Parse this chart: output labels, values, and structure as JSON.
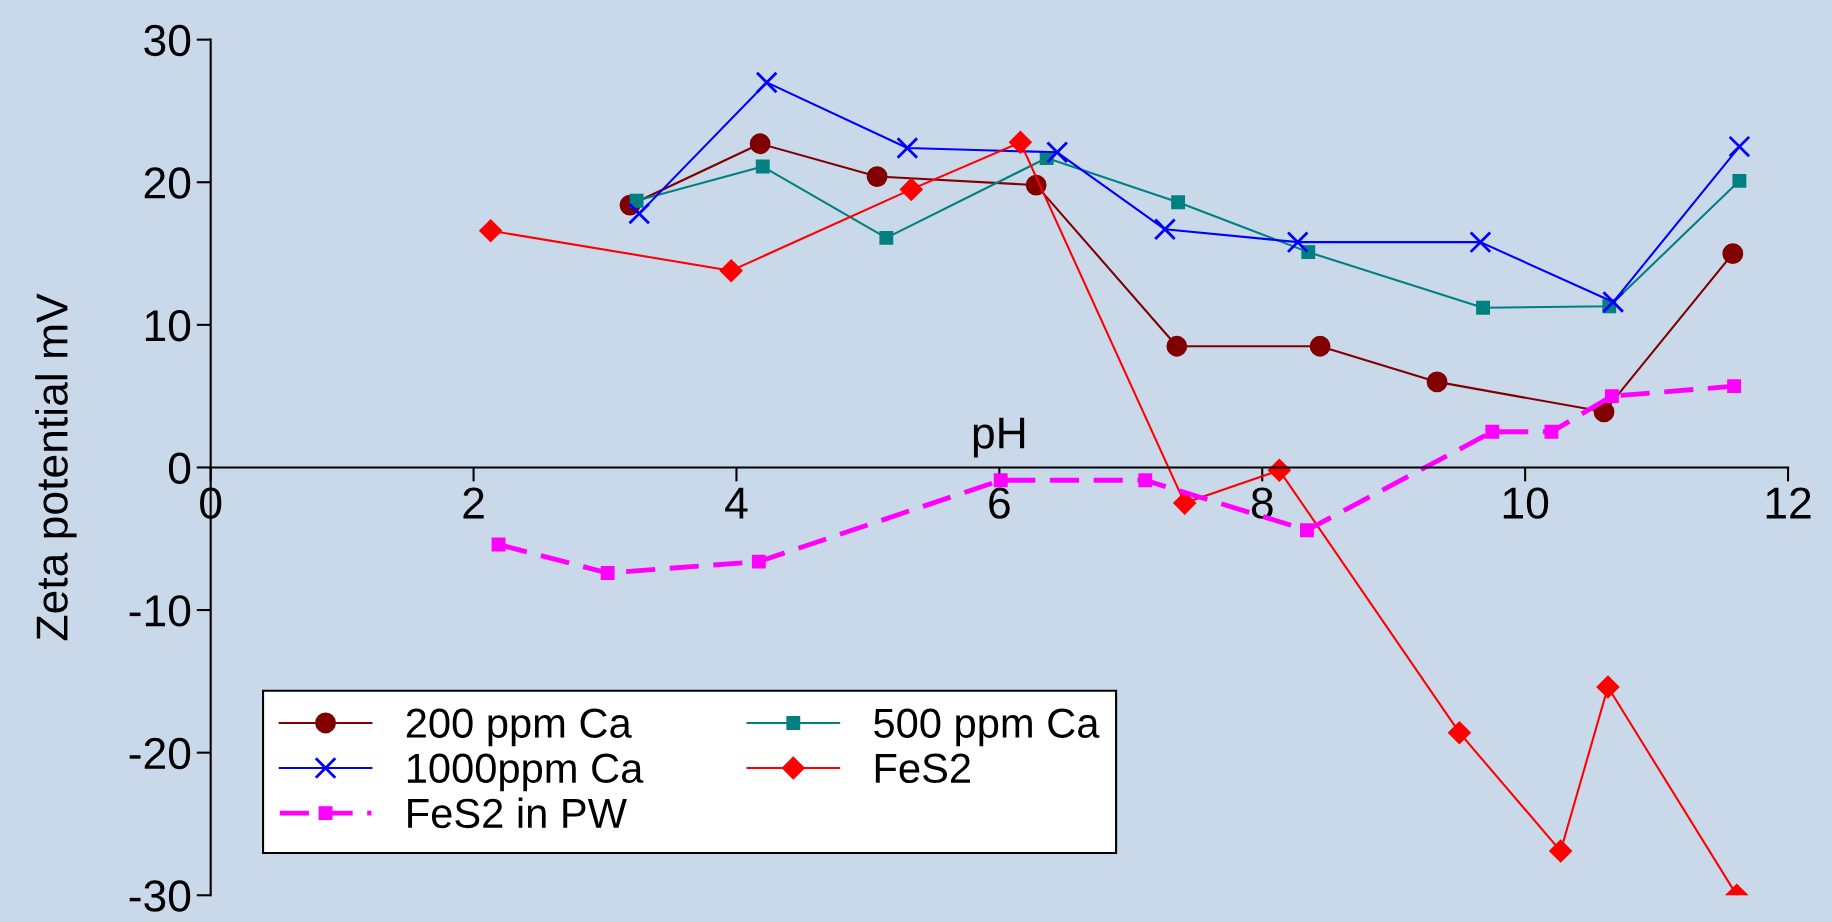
{
  "chart_data": {
    "type": "line",
    "xlabel": "pH",
    "ylabel": "Zeta potential mV",
    "xlim": [
      0,
      12
    ],
    "xticks": [
      0,
      2,
      4,
      6,
      8,
      10,
      12
    ],
    "ylim": [
      -30,
      30
    ],
    "yticks": [
      -30,
      -20,
      -10,
      0,
      10,
      20,
      30
    ],
    "grid": false,
    "legend": "bottom left",
    "series": [
      {
        "name": "200 ppm Ca",
        "color": "#800000",
        "marker": "circle",
        "line_style": "solid",
        "x": [
          3.19,
          4.18,
          5.07,
          6.28,
          7.35,
          8.44,
          9.33,
          10.6,
          11.58
        ],
        "values": [
          18.4,
          22.7,
          20.4,
          19.8,
          8.5,
          8.5,
          6.0,
          3.9,
          15.0
        ]
      },
      {
        "name": "500 ppm Ca",
        "color": "#008080",
        "marker": "square",
        "line_style": "solid",
        "x": [
          3.24,
          4.2,
          5.14,
          6.36,
          7.36,
          8.35,
          9.68,
          10.64,
          11.63
        ],
        "values": [
          18.7,
          21.1,
          16.1,
          21.7,
          18.6,
          15.1,
          11.2,
          11.3,
          20.1
        ]
      },
      {
        "name": "1000ppm Ca",
        "color": "#0000ff",
        "marker": "cross",
        "line_style": "solid",
        "x": [
          3.26,
          4.23,
          5.3,
          6.44,
          7.26,
          8.27,
          9.66,
          10.67,
          11.63
        ],
        "values": [
          17.8,
          27.0,
          22.4,
          22.1,
          16.7,
          15.8,
          15.8,
          11.6,
          22.5
        ]
      },
      {
        "name": "FeS2",
        "color": "#ff0000",
        "marker": "diamond",
        "line_style": "solid",
        "x": [
          2.13,
          3.96,
          5.33,
          6.16,
          7.41,
          8.13,
          9.5,
          10.27,
          10.63,
          11.61
        ],
        "values": [
          16.6,
          13.8,
          19.5,
          22.8,
          -2.5,
          -0.2,
          -18.6,
          -26.9,
          -15.4,
          -30.0
        ]
      },
      {
        "name": "FeS2 in PW",
        "color": "#ff00ff",
        "marker": "square",
        "line_style": "dashed",
        "x": [
          2.19,
          3.02,
          4.17,
          6.01,
          7.11,
          8.34,
          9.75,
          10.2,
          10.66,
          11.59
        ],
        "values": [
          -5.4,
          -7.4,
          -6.6,
          -0.9,
          -0.9,
          -4.4,
          2.5,
          2.5,
          5.0,
          5.7
        ]
      }
    ]
  }
}
